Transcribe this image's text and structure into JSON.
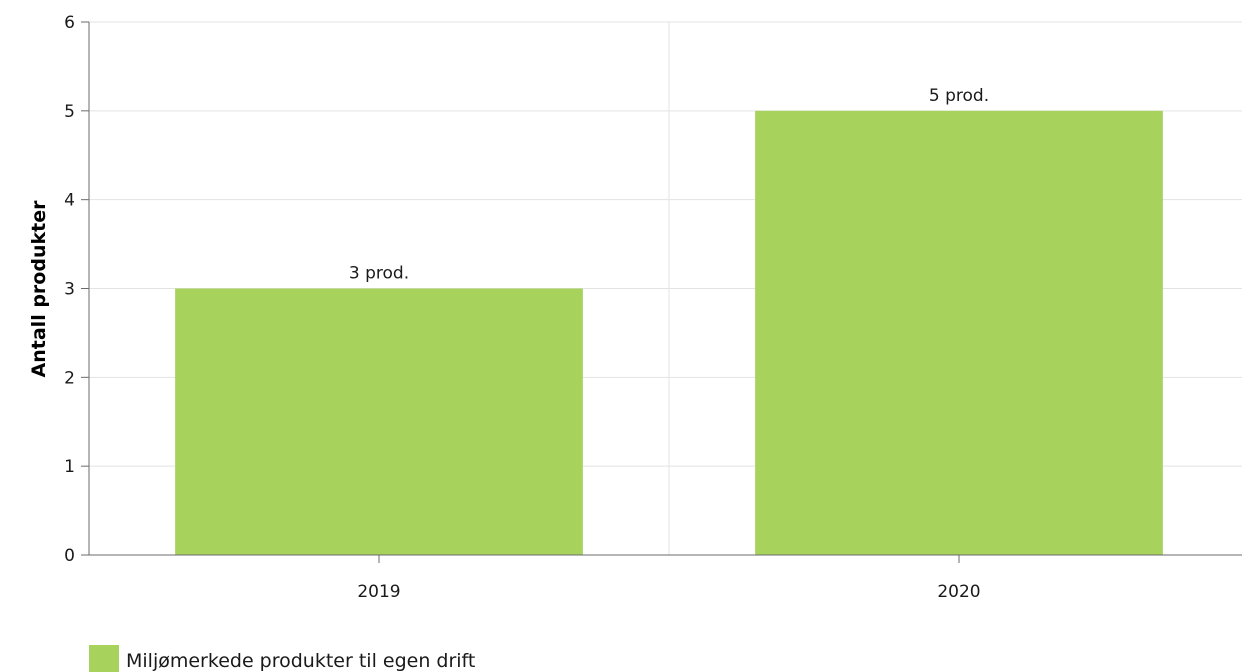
{
  "chart_data": {
    "type": "bar",
    "categories": [
      "2019",
      "2020"
    ],
    "series": [
      {
        "name": "Miljømerkede produkter til egen drift",
        "values": [
          3,
          5
        ],
        "data_labels": [
          "3 prod.",
          "5 prod."
        ],
        "color": "#a7d25c"
      }
    ],
    "title": "",
    "xlabel": "",
    "ylabel": "Antall produkter",
    "ylim": [
      0,
      6
    ],
    "yticks": [
      0,
      1,
      2,
      3,
      4,
      5,
      6
    ],
    "grid": true,
    "legend_position": "bottom-left"
  },
  "colors": {
    "bar": "#a7d25c",
    "grid": "#e3e3e3",
    "axis": "#6b6b6b"
  }
}
